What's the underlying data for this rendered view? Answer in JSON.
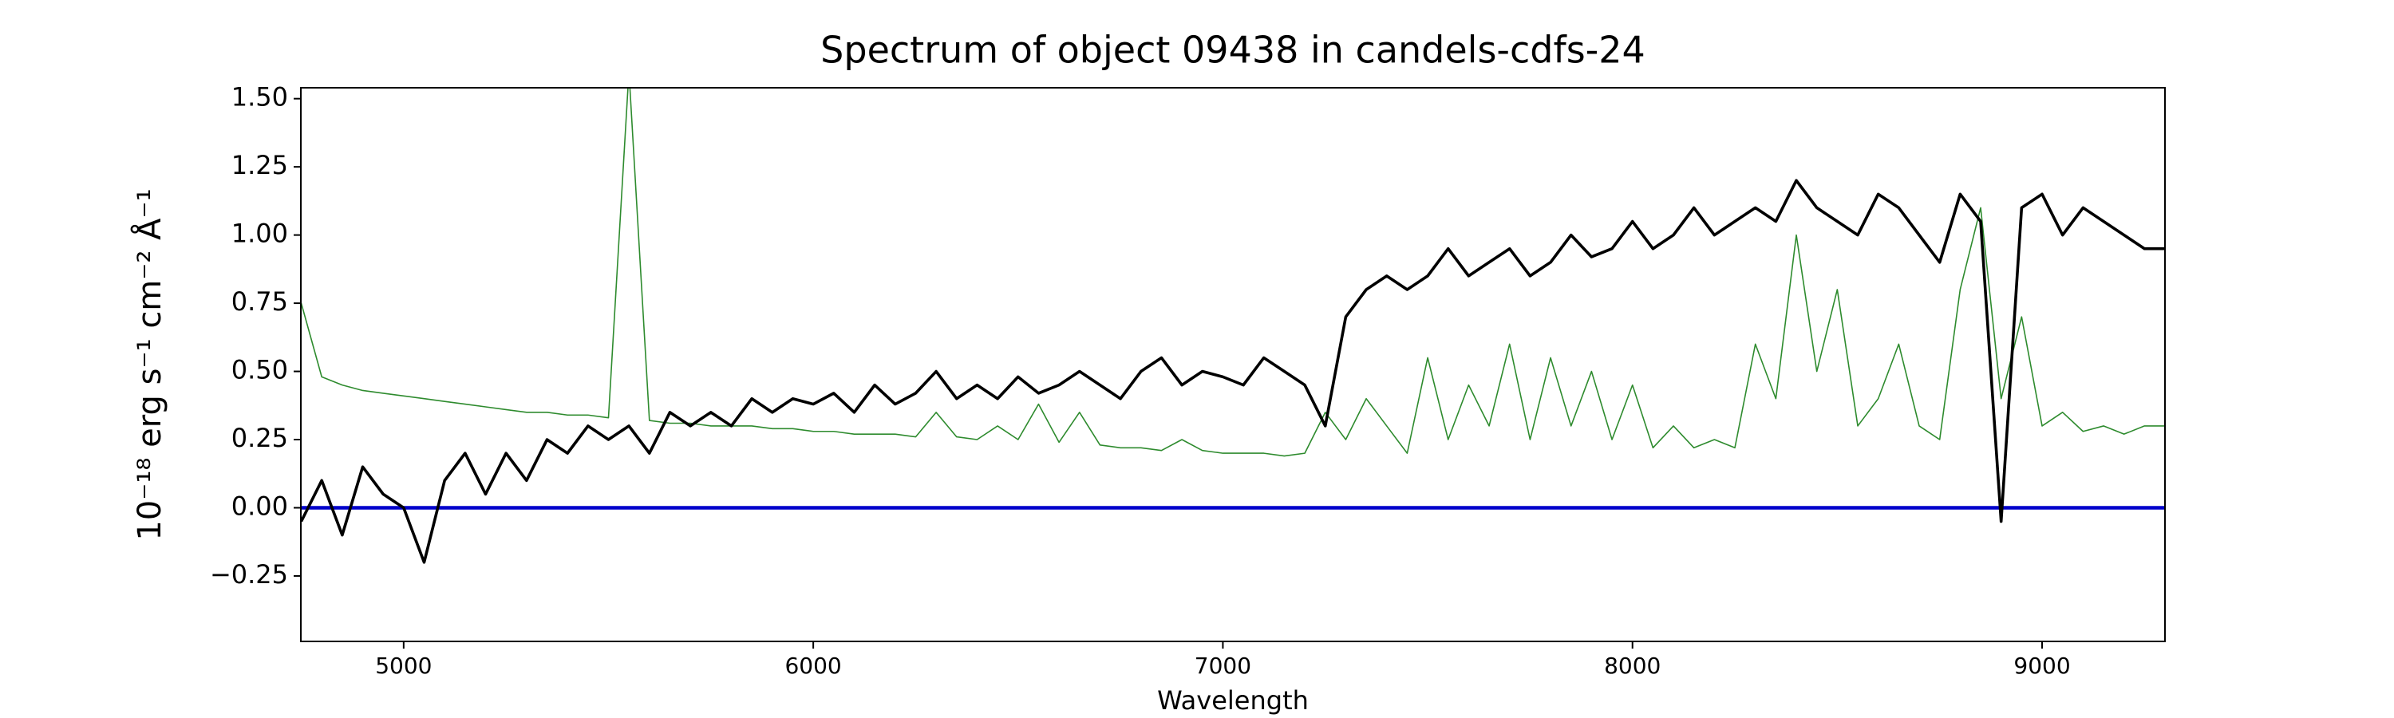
{
  "chart_data": {
    "type": "line",
    "title": "Spectrum of object 09438 in candels-cdfs-24",
    "xlabel": "Wavelength",
    "ylabel": "10⁻¹⁸ erg s⁻¹ cm⁻² Å⁻¹",
    "x": [
      4750,
      4800,
      4850,
      4900,
      4950,
      5000,
      5050,
      5100,
      5150,
      5200,
      5250,
      5300,
      5350,
      5400,
      5450,
      5500,
      5550,
      5600,
      5650,
      5700,
      5750,
      5800,
      5850,
      5900,
      5950,
      6000,
      6050,
      6100,
      6150,
      6200,
      6250,
      6300,
      6350,
      6400,
      6450,
      6500,
      6550,
      6600,
      6650,
      6700,
      6750,
      6800,
      6850,
      6900,
      6950,
      7000,
      7050,
      7100,
      7150,
      7200,
      7250,
      7300,
      7350,
      7400,
      7450,
      7500,
      7550,
      7600,
      7650,
      7700,
      7750,
      7800,
      7850,
      7900,
      7950,
      8000,
      8050,
      8100,
      8150,
      8200,
      8250,
      8300,
      8350,
      8400,
      8450,
      8500,
      8550,
      8600,
      8650,
      8700,
      8750,
      8800,
      8850,
      8900,
      8950,
      9000,
      9050,
      9100,
      9150,
      9200,
      9250,
      9300
    ],
    "series": [
      {
        "color": "#2e8b2e",
        "values": [
          0.75,
          0.48,
          0.45,
          0.43,
          0.42,
          0.41,
          0.4,
          0.39,
          0.38,
          0.37,
          0.36,
          0.35,
          0.35,
          0.34,
          0.34,
          0.33,
          1.6,
          0.32,
          0.31,
          0.31,
          0.3,
          0.3,
          0.3,
          0.29,
          0.29,
          0.28,
          0.28,
          0.27,
          0.27,
          0.27,
          0.26,
          0.35,
          0.26,
          0.25,
          0.3,
          0.25,
          0.38,
          0.24,
          0.35,
          0.23,
          0.22,
          0.22,
          0.21,
          0.25,
          0.21,
          0.2,
          0.2,
          0.2,
          0.19,
          0.2,
          0.35,
          0.25,
          0.4,
          0.3,
          0.2,
          0.55,
          0.25,
          0.45,
          0.3,
          0.6,
          0.25,
          0.55,
          0.3,
          0.5,
          0.25,
          0.45,
          0.22,
          0.3,
          0.22,
          0.25,
          0.22,
          0.6,
          0.4,
          1.0,
          0.5,
          0.8,
          0.3,
          0.4,
          0.6,
          0.3,
          0.25,
          0.8,
          1.1,
          0.4,
          0.7,
          0.3,
          0.35,
          0.28,
          0.3,
          0.27,
          0.3,
          0.3
        ]
      },
      {
        "color": "#0000cc",
        "values": [
          0,
          0,
          0,
          0,
          0,
          0,
          0,
          0,
          0,
          0,
          0,
          0,
          0,
          0,
          0,
          0,
          0,
          0,
          0,
          0,
          0,
          0,
          0,
          0,
          0,
          0,
          0,
          0,
          0,
          0,
          0,
          0,
          0,
          0,
          0,
          0,
          0,
          0,
          0,
          0,
          0,
          0,
          0,
          0,
          0,
          0,
          0,
          0,
          0,
          0,
          0,
          0,
          0,
          0,
          0,
          0,
          0,
          0,
          0,
          0,
          0,
          0,
          0,
          0,
          0,
          0,
          0,
          0,
          0,
          0,
          0,
          0,
          0,
          0,
          0,
          0,
          0,
          0,
          0,
          0,
          0,
          0,
          0,
          0,
          0,
          0,
          0,
          0,
          0,
          0,
          0,
          0
        ]
      },
      {
        "color": "#000000",
        "values": [
          -0.05,
          0.1,
          -0.1,
          0.15,
          0.05,
          0.0,
          -0.2,
          0.1,
          0.2,
          0.05,
          0.2,
          0.1,
          0.25,
          0.2,
          0.3,
          0.25,
          0.3,
          0.2,
          0.35,
          0.3,
          0.35,
          0.3,
          0.4,
          0.35,
          0.4,
          0.38,
          0.42,
          0.35,
          0.45,
          0.38,
          0.42,
          0.5,
          0.4,
          0.45,
          0.4,
          0.48,
          0.42,
          0.45,
          0.5,
          0.45,
          0.4,
          0.5,
          0.55,
          0.45,
          0.5,
          0.48,
          0.45,
          0.55,
          0.5,
          0.45,
          0.3,
          0.7,
          0.8,
          0.85,
          0.8,
          0.85,
          0.95,
          0.85,
          0.9,
          0.95,
          0.85,
          0.9,
          1.0,
          0.92,
          0.95,
          1.05,
          0.95,
          1.0,
          1.1,
          1.0,
          1.05,
          1.1,
          1.05,
          1.2,
          1.1,
          1.05,
          1.0,
          1.15,
          1.1,
          1.0,
          0.9,
          1.15,
          1.05,
          -0.05,
          1.1,
          1.15,
          1.0,
          1.1,
          1.05,
          1.0,
          0.95,
          0.95
        ]
      }
    ],
    "xlim": [
      4749,
      9300
    ],
    "ylim": [
      -0.49,
      1.54
    ],
    "xticks": [
      5000,
      6000,
      7000,
      8000,
      9000
    ],
    "yticks": [
      {
        "value": -0.25,
        "label": "−0.25"
      },
      {
        "value": 0,
        "label": "0.00"
      },
      {
        "value": 0.25,
        "label": "0.25"
      },
      {
        "value": 0.5,
        "label": "0.50"
      },
      {
        "value": 0.75,
        "label": "0.75"
      },
      {
        "value": 1.0,
        "label": "1.00"
      },
      {
        "value": 1.25,
        "label": "1.25"
      },
      {
        "value": 1.5,
        "label": "1.50"
      }
    ]
  }
}
